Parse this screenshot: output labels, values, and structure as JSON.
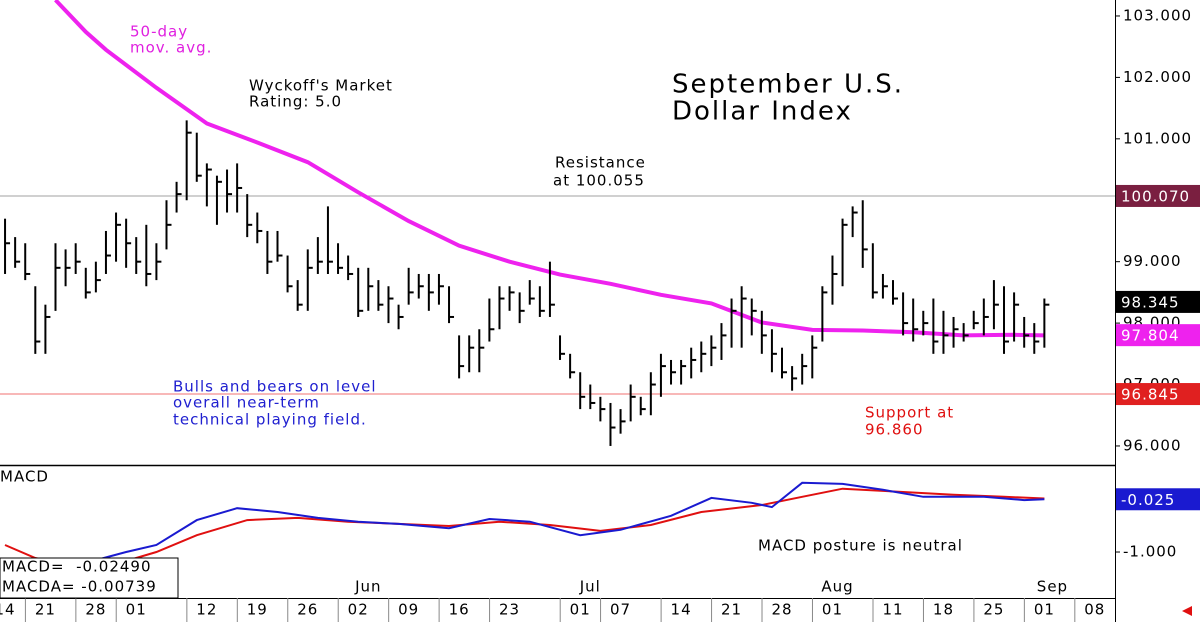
{
  "chart_data": [
    {
      "type": "ohlc",
      "title": [
        "September U.S.",
        "Dollar Index"
      ],
      "annotations": [
        [
          "50-day",
          "mov. avg."
        ],
        [
          "Wyckoff's Market",
          "Rating: 5.0"
        ],
        [
          "Resistance",
          "at 100.055"
        ],
        [
          "Bulls and bears on level",
          "overall near-term",
          "technical playing field."
        ],
        [
          "Support at",
          "96.860"
        ]
      ],
      "xlim": [
        -0.5,
        110
      ],
      "ylim": [
        95.69,
        103.26
      ],
      "yticks": [
        {
          "value": 96,
          "label": "96.000"
        },
        {
          "value": 97,
          "label": "97.000"
        },
        {
          "value": 98,
          "label": "98.000"
        },
        {
          "value": 99,
          "label": "99.000"
        },
        {
          "value": 101,
          "label": "101.000"
        },
        {
          "value": 102,
          "label": "102.000"
        },
        {
          "value": 103,
          "label": "103.000"
        }
      ],
      "bar_color": "#000000",
      "bars": {
        "high": [
          99.7,
          99.4,
          99.3,
          98.6,
          98.3,
          99.3,
          99.2,
          99.3,
          98.9,
          99.0,
          99.5,
          99.8,
          99.7,
          99.4,
          99.6,
          99.3,
          100.0,
          100.3,
          101.3,
          101.1,
          100.6,
          100.4,
          100.5,
          100.6,
          100.1,
          99.8,
          99.5,
          99.5,
          99.1,
          98.7,
          99.2,
          99.4,
          99.9,
          99.3,
          99.1,
          98.9,
          98.9,
          98.7,
          98.6,
          98.3,
          98.9,
          98.8,
          98.8,
          98.8,
          98.6,
          97.8,
          97.8,
          97.9,
          98.4,
          98.6,
          98.6,
          98.5,
          98.7,
          98.6,
          99.0,
          97.8,
          97.5,
          97.2,
          97.0,
          96.8,
          96.7,
          96.6,
          97.0,
          96.8,
          97.2,
          97.5,
          97.4,
          97.4,
          97.6,
          97.7,
          97.8,
          98.0,
          98.4,
          98.6,
          98.4,
          98.2,
          97.9,
          97.6,
          97.3,
          97.5,
          97.8,
          98.6,
          99.1,
          99.7,
          99.9,
          100.0,
          99.3,
          98.8,
          98.7,
          98.5,
          98.4,
          98.2,
          98.4,
          98.2,
          98.1,
          98.0,
          98.2,
          98.4,
          98.7,
          98.6,
          98.5,
          98.1,
          98.0,
          98.4
        ],
        "low": [
          98.8,
          98.9,
          98.7,
          97.5,
          97.5,
          98.2,
          98.6,
          98.8,
          98.4,
          98.5,
          98.8,
          99.0,
          98.9,
          98.8,
          98.6,
          98.7,
          99.2,
          99.8,
          100.0,
          100.3,
          99.9,
          99.6,
          99.8,
          99.8,
          99.4,
          99.3,
          98.8,
          99.0,
          98.5,
          98.2,
          98.2,
          98.8,
          98.8,
          98.8,
          98.7,
          98.1,
          98.2,
          98.2,
          98.0,
          97.9,
          98.3,
          98.4,
          98.2,
          98.3,
          98.0,
          97.1,
          97.2,
          97.2,
          97.7,
          97.9,
          98.2,
          98.0,
          98.3,
          98.1,
          98.1,
          97.4,
          97.1,
          96.6,
          96.6,
          96.4,
          96.0,
          96.2,
          96.4,
          96.5,
          96.5,
          96.8,
          97.0,
          97.0,
          97.1,
          97.2,
          97.3,
          97.4,
          97.6,
          97.6,
          97.8,
          97.5,
          97.2,
          97.1,
          96.9,
          97.0,
          97.1,
          97.7,
          98.3,
          98.6,
          99.4,
          98.9,
          98.4,
          98.4,
          98.3,
          97.8,
          97.7,
          97.8,
          97.5,
          97.5,
          97.6,
          97.7,
          97.9,
          97.8,
          97.9,
          97.5,
          97.7,
          97.6,
          97.5,
          97.6
        ],
        "close": [
          99.3,
          99.0,
          98.8,
          97.7,
          98.1,
          98.9,
          98.9,
          99.0,
          98.5,
          98.7,
          99.1,
          99.6,
          99.3,
          99.0,
          98.8,
          99.0,
          99.6,
          100.1,
          101.1,
          100.4,
          100.5,
          100.3,
          100.1,
          100.2,
          99.6,
          99.5,
          99.0,
          99.1,
          98.6,
          98.3,
          98.9,
          99.0,
          99.0,
          98.9,
          98.8,
          98.2,
          98.6,
          98.3,
          98.4,
          98.1,
          98.5,
          98.6,
          98.5,
          98.6,
          98.1,
          97.3,
          97.6,
          97.6,
          97.9,
          98.4,
          98.5,
          98.2,
          98.4,
          98.2,
          98.3,
          97.5,
          97.2,
          96.8,
          96.7,
          96.6,
          96.3,
          96.4,
          96.8,
          96.6,
          97.0,
          97.3,
          97.2,
          97.3,
          97.4,
          97.5,
          97.6,
          97.8,
          98.2,
          98.4,
          98.2,
          97.8,
          97.5,
          97.2,
          97.1,
          97.3,
          97.6,
          98.5,
          98.8,
          99.6,
          99.8,
          99.2,
          98.5,
          98.6,
          98.4,
          98.0,
          97.9,
          98.0,
          97.7,
          97.8,
          97.9,
          97.8,
          98.0,
          98.1,
          98.3,
          97.7,
          98.3,
          97.8,
          97.7,
          98.3
        ]
      },
      "series": [
        {
          "color": "#ee22ee",
          "x": [
            5,
            8,
            10,
            15,
            20,
            25,
            30,
            35,
            40,
            45,
            50,
            55,
            60,
            65,
            70,
            75,
            80,
            85,
            90,
            95,
            100,
            103
          ],
          "values": [
            103.26,
            102.74,
            102.45,
            101.83,
            101.25,
            100.94,
            100.62,
            100.13,
            99.66,
            99.26,
            99.0,
            98.79,
            98.64,
            98.46,
            98.32,
            98.01,
            97.89,
            97.88,
            97.85,
            97.8,
            97.81,
            97.8
          ]
        }
      ],
      "tags": [
        {
          "value": 100.07,
          "label": "100.070",
          "color": "#7a1f40",
          "line": "#a0a0a0"
        },
        {
          "value": 98.345,
          "label": "98.345",
          "color": "#000000"
        },
        {
          "value": 97.804,
          "label": "97.804",
          "color": "#ee22ee"
        },
        {
          "value": 96.845,
          "label": "96.845",
          "color": "#e02020",
          "line": "#f07070"
        }
      ]
    },
    {
      "type": "line",
      "label": "MACD",
      "readouts": [
        "MACD=  -0.02490",
        "MACDA= -0.00739"
      ],
      "annotations": [
        [
          "MACD posture is neutral"
        ]
      ],
      "xlim": [
        -0.5,
        110
      ],
      "ylim": [
        -1.85,
        0.59
      ],
      "yticks": [
        {
          "value": -1,
          "label": "-1.000"
        }
      ],
      "xticks": [
        {
          "value": 0,
          "label": "14"
        },
        {
          "value": 4,
          "label": "21"
        },
        {
          "value": 9,
          "label": "28"
        },
        {
          "value": 13,
          "label": "01"
        },
        {
          "value": 20,
          "label": "12"
        },
        {
          "value": 25,
          "label": "19"
        },
        {
          "value": 30,
          "label": "26"
        },
        {
          "value": 35,
          "label": "02"
        },
        {
          "value": 40,
          "label": "09"
        },
        {
          "value": 45,
          "label": "16"
        },
        {
          "value": 50,
          "label": "23"
        },
        {
          "value": 57,
          "label": "01"
        },
        {
          "value": 61,
          "label": "07"
        },
        {
          "value": 67,
          "label": "14"
        },
        {
          "value": 72,
          "label": "21"
        },
        {
          "value": 77,
          "label": "28"
        },
        {
          "value": 82,
          "label": "01"
        },
        {
          "value": 88,
          "label": "11"
        },
        {
          "value": 93,
          "label": "18"
        },
        {
          "value": 98,
          "label": "25"
        },
        {
          "value": 103,
          "label": "01"
        },
        {
          "value": 108,
          "label": "08"
        }
      ],
      "month_ticks": [
        {
          "value": 36,
          "label": "Jun"
        },
        {
          "value": 58,
          "label": "Jul"
        },
        {
          "value": 82.5,
          "label": "Aug"
        },
        {
          "value": 103.8,
          "label": "Sep"
        }
      ],
      "series": [
        {
          "color": "#e01010",
          "x": [
            0,
            3,
            9,
            15,
            19,
            24,
            29,
            34,
            39,
            44,
            49,
            54,
            59,
            64,
            69,
            75,
            79,
            83,
            89,
            94,
            99,
            103
          ],
          "values": [
            -0.87,
            -1.11,
            -1.33,
            -1.0,
            -0.69,
            -0.41,
            -0.37,
            -0.44,
            -0.48,
            -0.52,
            -0.44,
            -0.5,
            -0.61,
            -0.5,
            -0.26,
            -0.13,
            0.02,
            0.17,
            0.11,
            0.06,
            0.02,
            -0.01
          ]
        },
        {
          "color": "#1a1ad0",
          "x": [
            9,
            12,
            15,
            19,
            23,
            27,
            31,
            35,
            39,
            44,
            48,
            52,
            57,
            61,
            66,
            70,
            74,
            76,
            79,
            83,
            87,
            91,
            97,
            101,
            103
          ],
          "values": [
            -1.15,
            -1.0,
            -0.87,
            -0.41,
            -0.19,
            -0.26,
            -0.37,
            -0.44,
            -0.48,
            -0.56,
            -0.39,
            -0.44,
            -0.69,
            -0.59,
            -0.33,
            0.0,
            -0.09,
            -0.17,
            0.28,
            0.26,
            0.15,
            0.02,
            0.02,
            -0.04,
            -0.025
          ]
        }
      ],
      "tags": [
        {
          "value": -0.025,
          "label": "-0.025",
          "color": "#1a1ad0"
        }
      ]
    }
  ]
}
